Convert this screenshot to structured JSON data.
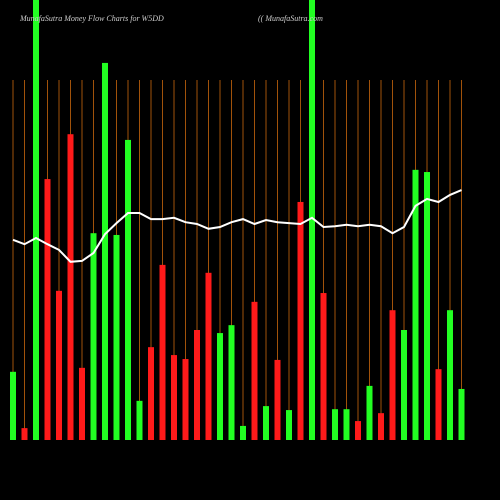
{
  "chart_data": {
    "type": "bar-line",
    "title": "MunafaSutra  Money Flow  Charts for W5DD",
    "subtitle": "(( MunafaSutra.com",
    "categories": [
      null,
      null,
      null,
      null,
      null,
      null,
      null,
      null,
      null,
      null,
      null,
      null,
      null,
      null,
      null,
      null,
      null,
      null,
      null,
      null,
      null,
      null,
      null,
      null,
      null,
      null,
      null,
      null,
      null,
      null,
      null,
      null,
      null,
      null,
      null,
      null,
      null,
      null,
      null,
      null
    ],
    "ylim": [
      0,
      100
    ],
    "grid": true,
    "grid_color": "#a0520a",
    "bars": {
      "values": [
        15.5,
        2.7,
        100,
        59.3,
        33.9,
        69.5,
        16.4,
        47,
        85.7,
        46.6,
        68.2,
        8.9,
        21.1,
        39.8,
        19.3,
        18.4,
        25,
        38,
        24.3,
        26.1,
        3.2,
        31.4,
        7.7,
        18.2,
        6.8,
        54.1,
        100,
        33.4,
        7,
        7,
        4.3,
        12.3,
        6.1,
        29.5,
        25,
        61.4,
        60.9,
        16.1,
        29.5,
        11.6
      ],
      "colors": [
        "#22ff22",
        "#ff1a1a",
        "#22ff22",
        "#ff1a1a",
        "#ff1a1a",
        "#ff1a1a",
        "#ff1a1a",
        "#22ff22",
        "#22ff22",
        "#22ff22",
        "#22ff22",
        "#22ff22",
        "#ff1a1a",
        "#ff1a1a",
        "#ff1a1a",
        "#ff1a1a",
        "#ff1a1a",
        "#ff1a1a",
        "#22ff22",
        "#22ff22",
        "#22ff22",
        "#ff1a1a",
        "#22ff22",
        "#ff1a1a",
        "#22ff22",
        "#ff1a1a",
        "#22ff22",
        "#ff1a1a",
        "#22ff22",
        "#22ff22",
        "#ff1a1a",
        "#22ff22",
        "#ff1a1a",
        "#ff1a1a",
        "#22ff22",
        "#22ff22",
        "#22ff22",
        "#ff1a1a",
        "#22ff22",
        "#22ff22"
      ]
    },
    "line": {
      "color": "#ffffff",
      "values": [
        45.5,
        44.5,
        45.9,
        44.5,
        43.2,
        40.5,
        40.7,
        42.5,
        46.8,
        49.3,
        51.6,
        51.6,
        50.2,
        50.2,
        50.5,
        49.5,
        49.1,
        48,
        48.4,
        49.5,
        50.2,
        49.1,
        50,
        49.5,
        49.3,
        49.1,
        50.5,
        48.4,
        48.6,
        48.9,
        48.6,
        48.9,
        48.6,
        47,
        48.4,
        53.2,
        54.8,
        54.1,
        55.7,
        56.8
      ]
    }
  }
}
